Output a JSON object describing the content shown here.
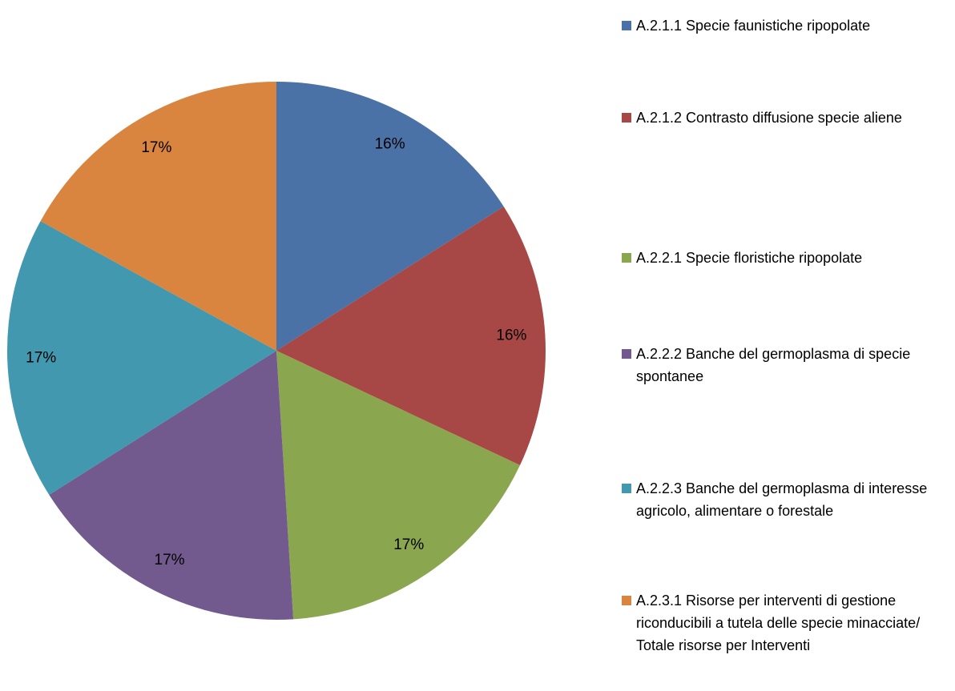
{
  "chart_data": {
    "type": "pie",
    "categories": [
      "A.2.1.1 Specie faunistiche ripopolate",
      "A.2.1.2 Contrasto diffusione specie aliene",
      "A.2.2.1 Specie floristiche ripopolate",
      "A.2.2.2 Banche del germoplasma di specie spontanee",
      "A.2.2.3 Banche del germoplasma di interesse agricolo, alimentare o forestale",
      "A.2.3.1 Risorse per interventi di gestione riconducibili a tutela delle specie minacciate/ Totale risorse per Interventi"
    ],
    "values": [
      16,
      16,
      17,
      17,
      17,
      17
    ],
    "value_labels": [
      "16%",
      "16%",
      "17%",
      "17%",
      "17%",
      "17%"
    ],
    "colors": [
      "#4a72a6",
      "#a84846",
      "#8aa64e",
      "#725a8e",
      "#4298ae",
      "#d9853f"
    ],
    "legend": "right"
  }
}
